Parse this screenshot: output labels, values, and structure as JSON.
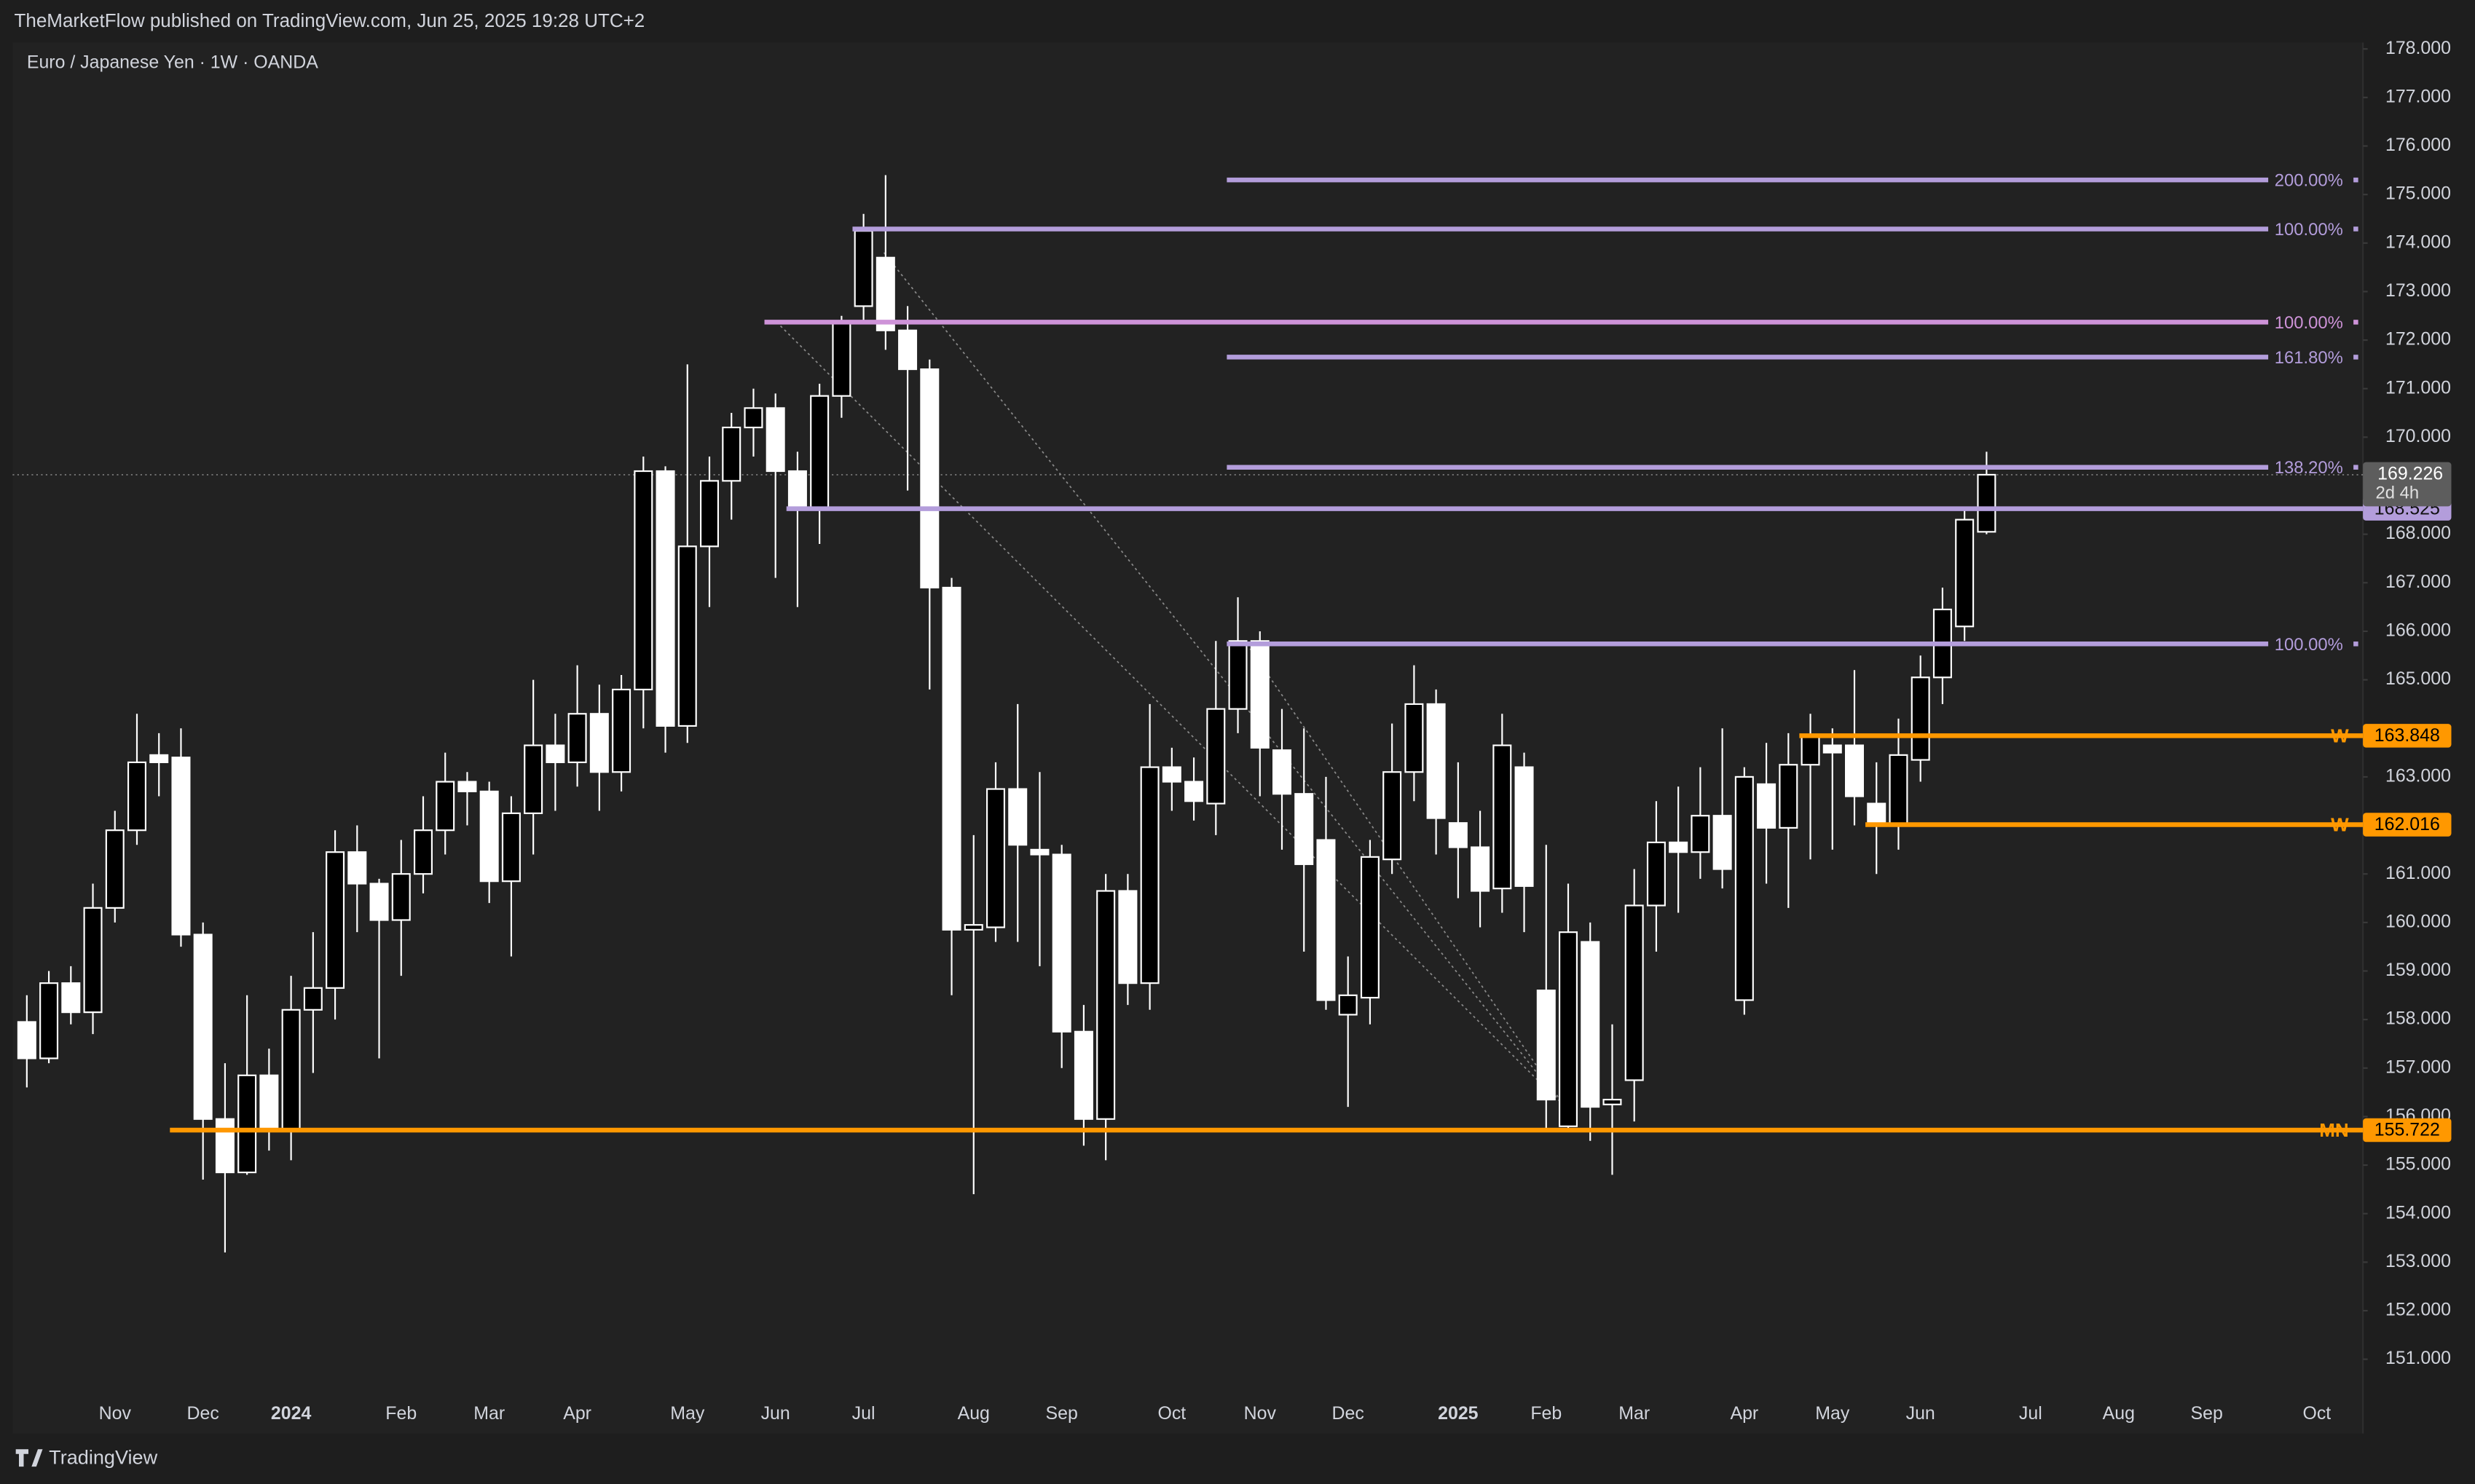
{
  "header": {
    "published": "TheMarketFlow published on TradingView.com, Jun 25, 2025 19:28 UTC+2"
  },
  "footer": {
    "brand": "TradingView"
  },
  "chart_data": {
    "type": "candlestick",
    "title": "Euro / Japanese Yen · 1W · OANDA",
    "categories": [
      null,
      null,
      null,
      null,
      "Nov",
      null,
      null,
      null,
      "Dec",
      null,
      null,
      null,
      "2024",
      null,
      null,
      null,
      null,
      "Feb",
      null,
      null,
      null,
      "Mar",
      null,
      null,
      null,
      "Apr",
      null,
      null,
      null,
      null,
      "May",
      null,
      null,
      null,
      "Jun",
      null,
      null,
      null,
      "Jul",
      null,
      null,
      null,
      null,
      "Aug",
      null,
      null,
      null,
      "Sep",
      null,
      null,
      null,
      null,
      "Oct",
      null,
      null,
      null,
      "Nov",
      null,
      null,
      null,
      "Dec",
      null,
      null,
      null,
      null,
      "2025",
      null,
      null,
      null,
      "Feb",
      null,
      null,
      null,
      "Mar",
      null,
      null,
      null,
      null,
      "Apr",
      null,
      null,
      null,
      "May",
      null,
      null,
      null,
      "Jun",
      null,
      null,
      null,
      null,
      "Jul",
      null,
      null,
      null,
      "Aug",
      null,
      null,
      null,
      "Sep",
      null,
      null,
      null,
      null,
      "Oct"
    ],
    "open": [
      157.95,
      157.2,
      158.75,
      158.15,
      160.3,
      161.9,
      163.45,
      163.4,
      159.75,
      155.95,
      154.85,
      156.85,
      155.7,
      158.2,
      158.65,
      161.45,
      160.8,
      160.05,
      161.0,
      161.9,
      162.9,
      162.7,
      160.85,
      162.25,
      163.65,
      163.3,
      164.3,
      163.1,
      164.8,
      169.3,
      164.05,
      167.75,
      169.1,
      170.2,
      170.6,
      169.3,
      168.5,
      170.85,
      172.7,
      173.7,
      172.2,
      171.4,
      166.9,
      159.85,
      159.9,
      162.75,
      161.5,
      161.4,
      157.75,
      155.95,
      160.65,
      158.75,
      163.2,
      162.9,
      162.45,
      164.4,
      165.8,
      163.55,
      162.65,
      161.7,
      158.1,
      158.45,
      161.3,
      163.1,
      164.5,
      162.05,
      161.55,
      160.7,
      163.2,
      158.6,
      155.8,
      159.6,
      156.25,
      156.75,
      160.35,
      161.65,
      161.45,
      162.2,
      158.4,
      162.85,
      161.95,
      163.25,
      163.65,
      163.65,
      162.45,
      162.0,
      163.35,
      165.05,
      166.1,
      168.05,
      null,
      null,
      null,
      null,
      null,
      null,
      null,
      null,
      null,
      null,
      null,
      null,
      null,
      null,
      null
    ],
    "high": [
      158.5,
      159.0,
      159.1,
      160.8,
      162.3,
      164.3,
      163.9,
      164.0,
      160.0,
      157.1,
      158.5,
      157.4,
      158.9,
      159.8,
      161.9,
      162.0,
      160.9,
      161.7,
      162.6,
      163.5,
      163.1,
      162.9,
      162.6,
      165.0,
      164.3,
      165.3,
      164.9,
      165.1,
      169.6,
      169.4,
      171.5,
      169.6,
      170.5,
      171.0,
      170.9,
      169.7,
      171.1,
      172.5,
      174.6,
      175.4,
      172.7,
      171.6,
      167.1,
      161.8,
      163.3,
      164.5,
      163.1,
      161.6,
      158.3,
      161.0,
      161.0,
      164.5,
      163.6,
      163.4,
      165.8,
      166.7,
      166.0,
      164.4,
      164.0,
      163.0,
      159.3,
      161.7,
      164.1,
      165.3,
      164.8,
      163.3,
      162.3,
      164.3,
      163.5,
      161.6,
      160.8,
      160.0,
      157.9,
      161.1,
      162.5,
      162.8,
      163.2,
      164.0,
      163.2,
      163.7,
      163.9,
      164.3,
      164.0,
      165.2,
      163.3,
      164.2,
      165.5,
      166.9,
      168.5,
      169.7,
      null,
      null,
      null,
      null,
      null,
      null,
      null,
      null,
      null,
      null,
      null,
      null,
      null,
      null,
      null
    ],
    "low": [
      156.6,
      157.1,
      157.9,
      157.7,
      160.0,
      161.6,
      162.6,
      159.5,
      154.7,
      153.2,
      154.8,
      155.3,
      155.1,
      156.9,
      158.0,
      159.8,
      157.2,
      158.9,
      160.6,
      161.4,
      162.0,
      160.4,
      159.3,
      161.4,
      162.3,
      162.8,
      162.3,
      162.7,
      164.0,
      163.5,
      163.7,
      166.5,
      168.3,
      169.6,
      167.1,
      166.5,
      167.8,
      170.4,
      172.4,
      171.8,
      168.9,
      164.8,
      158.5,
      154.4,
      159.6,
      159.6,
      159.1,
      157.0,
      155.4,
      155.1,
      158.3,
      158.2,
      162.3,
      162.1,
      161.8,
      163.9,
      162.6,
      161.5,
      159.4,
      158.2,
      156.2,
      157.9,
      161.0,
      162.5,
      161.4,
      160.5,
      159.9,
      160.2,
      159.8,
      155.7,
      155.7,
      155.5,
      154.8,
      155.9,
      159.4,
      160.2,
      160.9,
      160.7,
      158.1,
      160.8,
      160.3,
      161.3,
      161.5,
      162.0,
      161.0,
      161.5,
      162.9,
      164.5,
      165.8,
      168.0,
      null,
      null,
      null,
      null,
      null,
      null,
      null,
      null,
      null,
      null,
      null,
      null,
      null,
      null,
      null
    ],
    "close": [
      157.2,
      158.75,
      158.15,
      160.3,
      161.9,
      163.3,
      163.3,
      159.75,
      155.95,
      154.85,
      156.85,
      155.7,
      158.2,
      158.65,
      161.45,
      160.8,
      160.05,
      161.0,
      161.9,
      162.9,
      162.7,
      160.85,
      162.25,
      163.65,
      163.3,
      164.3,
      163.1,
      164.8,
      169.3,
      164.05,
      167.75,
      169.1,
      170.2,
      170.6,
      169.3,
      168.5,
      170.85,
      172.35,
      174.25,
      172.2,
      171.4,
      166.9,
      159.85,
      159.95,
      162.75,
      161.6,
      161.4,
      157.75,
      155.95,
      160.65,
      158.75,
      163.2,
      162.9,
      162.5,
      164.4,
      165.8,
      163.6,
      162.65,
      161.2,
      158.4,
      158.5,
      161.35,
      163.1,
      164.5,
      162.15,
      161.55,
      160.65,
      163.65,
      160.75,
      156.35,
      159.8,
      156.2,
      156.35,
      160.35,
      161.65,
      161.45,
      162.2,
      161.1,
      163.0,
      161.95,
      163.25,
      163.85,
      163.5,
      162.6,
      162.0,
      163.45,
      165.05,
      166.45,
      168.3,
      169.226,
      null,
      null,
      null,
      null,
      null,
      null,
      null,
      null,
      null,
      null,
      null,
      null,
      null,
      null,
      null
    ],
    "up_color": "#000000",
    "down_color": "#ffffff",
    "countdown": "2d 4h",
    "ylim": [
      149.47,
      178.13
    ],
    "yticks": [
      {
        "value": 151,
        "label": "151.000"
      },
      {
        "value": 152,
        "label": "152.000"
      },
      {
        "value": 153,
        "label": "153.000"
      },
      {
        "value": 154,
        "label": "154.000"
      },
      {
        "value": 155,
        "label": "155.000"
      },
      {
        "value": 156,
        "label": "156.000"
      },
      {
        "value": 157,
        "label": "157.000"
      },
      {
        "value": 158,
        "label": "158.000"
      },
      {
        "value": 159,
        "label": "159.000"
      },
      {
        "value": 160,
        "label": "160.000"
      },
      {
        "value": 161,
        "label": "161.000"
      },
      {
        "value": 163,
        "label": "163.000"
      },
      {
        "value": 165,
        "label": "165.000"
      },
      {
        "value": 166,
        "label": "166.000"
      },
      {
        "value": 167,
        "label": "167.000"
      },
      {
        "value": 168,
        "label": "168.000"
      },
      {
        "value": 170,
        "label": "170.000"
      },
      {
        "value": 171,
        "label": "171.000"
      },
      {
        "value": 172,
        "label": "172.000"
      },
      {
        "value": 173,
        "label": "173.000"
      },
      {
        "value": 174,
        "label": "174.000"
      },
      {
        "value": 175,
        "label": "175.000"
      },
      {
        "value": 176,
        "label": "176.000"
      },
      {
        "value": 177,
        "label": "177.000"
      },
      {
        "value": 178,
        "label": "178.000"
      }
    ],
    "levels": [
      {
        "label": "200.00%",
        "value": 175.3,
        "color": "#b39ddb"
      },
      {
        "label": "100.00%",
        "value": 174.29,
        "color": "#b39ddb"
      },
      {
        "label": "100.00%",
        "value": 172.37,
        "color": "#ce93d8"
      },
      {
        "label": "161.80%",
        "value": 171.65,
        "color": "#b39ddb"
      },
      {
        "label": "138.20%",
        "value": 169.38,
        "color": "#b39ddb"
      },
      {
        "value": 168.525,
        "color": "#b39ddb"
      },
      {
        "label": "100.00%",
        "value": 165.74,
        "color": "#b39ddb"
      },
      {
        "label": "W",
        "value": 163.848,
        "color": "#ff9800"
      },
      {
        "label": "W",
        "value": 162.016,
        "color": "#ff9800"
      },
      {
        "label": "MN",
        "value": 155.722,
        "color": "#ff9800"
      }
    ]
  }
}
